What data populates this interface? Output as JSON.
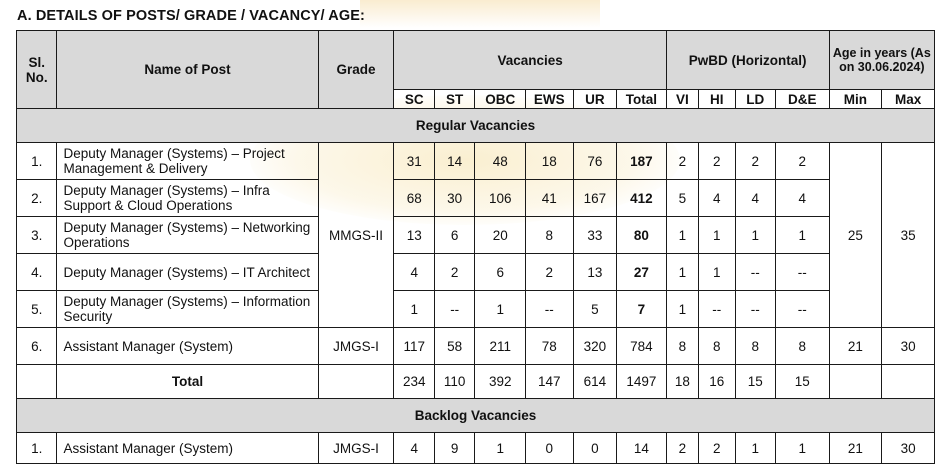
{
  "heading": "A. DETAILS OF POSTS/ GRADE / VACANCY/ AGE:",
  "headers": {
    "sl_no": "Sl. No.",
    "name_of_post": "Name of Post",
    "grade": "Grade",
    "vacancies": "Vacancies",
    "pwbd": "PwBD (Horizontal)",
    "age": "Age in years (As on 30.06.2024)",
    "vac_cols": [
      "SC",
      "ST",
      "OBC",
      "EWS",
      "UR",
      "Total"
    ],
    "pwbd_cols": [
      "VI",
      "HI",
      "LD",
      "D&E"
    ],
    "age_cols": [
      "Min",
      "Max"
    ]
  },
  "regular": {
    "label": "Regular Vacancies",
    "grade_mmgs": "MMGS-II",
    "age_min_mmgs": "25",
    "age_max_mmgs": "35",
    "rows": [
      {
        "sl": "1.",
        "post": "Deputy Manager (Systems) – Project Management & Delivery",
        "sc": "31",
        "st": "14",
        "obc": "48",
        "ews": "18",
        "ur": "76",
        "total": "187",
        "vi": "2",
        "hi": "2",
        "ld": "2",
        "de": "2"
      },
      {
        "sl": "2.",
        "post": "Deputy Manager (Systems) – Infra Support & Cloud Operations",
        "sc": "68",
        "st": "30",
        "obc": "106",
        "ews": "41",
        "ur": "167",
        "total": "412",
        "vi": "5",
        "hi": "4",
        "ld": "4",
        "de": "4"
      },
      {
        "sl": "3.",
        "post": "Deputy Manager (Systems) – Networking Operations",
        "sc": "13",
        "st": "6",
        "obc": "20",
        "ews": "8",
        "ur": "33",
        "total": "80",
        "vi": "1",
        "hi": "1",
        "ld": "1",
        "de": "1"
      },
      {
        "sl": "4.",
        "post": "Deputy Manager (Systems) – IT Architect",
        "sc": "4",
        "st": "2",
        "obc": "6",
        "ews": "2",
        "ur": "13",
        "total": "27",
        "vi": "1",
        "hi": "1",
        "ld": "--",
        "de": "--"
      },
      {
        "sl": "5.",
        "post": "Deputy Manager (Systems) – Information Security",
        "sc": "1",
        "st": "--",
        "obc": "1",
        "ews": "--",
        "ur": "5",
        "total": "7",
        "vi": "1",
        "hi": "--",
        "ld": "--",
        "de": "--"
      }
    ],
    "row6": {
      "sl": "6.",
      "post": "Assistant Manager (System)",
      "grade": "JMGS-I",
      "sc": "117",
      "st": "58",
      "obc": "211",
      "ews": "78",
      "ur": "320",
      "total": "784",
      "vi": "8",
      "hi": "8",
      "ld": "8",
      "de": "8",
      "min": "21",
      "max": "30"
    }
  },
  "total": {
    "label": "Total",
    "sc": "234",
    "st": "110",
    "obc": "392",
    "ews": "147",
    "ur": "614",
    "total": "1497",
    "vi": "18",
    "hi": "16",
    "ld": "15",
    "de": "15"
  },
  "backlog": {
    "label": "Backlog Vacancies",
    "row": {
      "sl": "1.",
      "post": "Assistant Manager (System)",
      "grade": "JMGS-I",
      "sc": "4",
      "st": "9",
      "obc": "1",
      "ews": "0",
      "ur": "0",
      "total": "14",
      "vi": "2",
      "hi": "2",
      "ld": "1",
      "de": "1",
      "min": "21",
      "max": "30"
    }
  }
}
